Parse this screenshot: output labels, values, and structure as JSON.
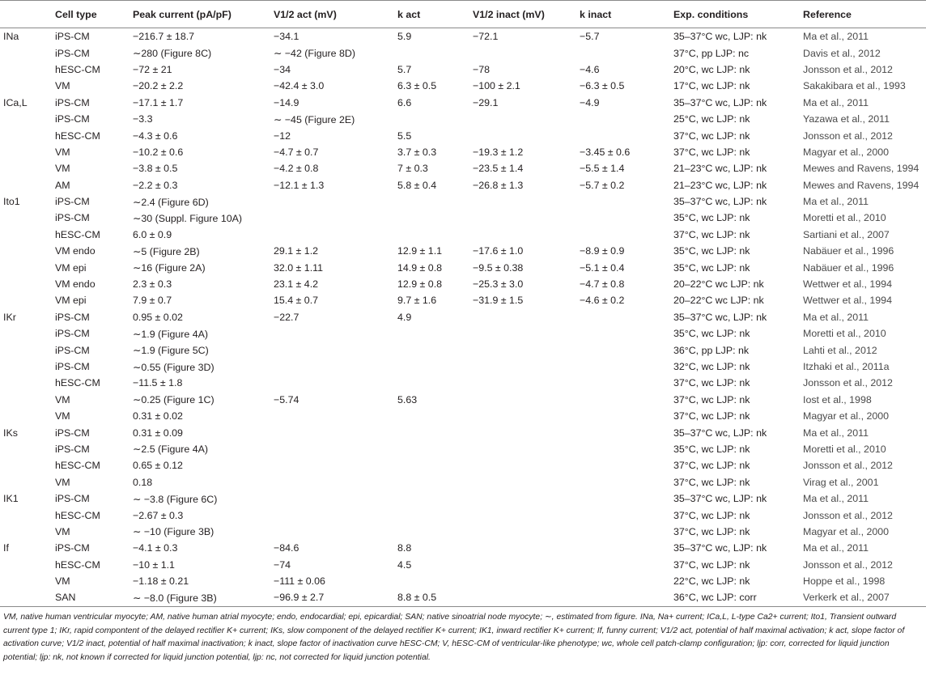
{
  "headers": [
    "",
    "Cell type",
    "Peak current (pA/pF)",
    "V1/2 act (mV)",
    "k act",
    "V1/2 inact (mV)",
    "k inact",
    "Exp. conditions",
    "Reference"
  ],
  "rows": [
    [
      "INa",
      "iPS-CM",
      "−216.7 ± 18.7",
      "−34.1",
      "5.9",
      "−72.1",
      "−5.7",
      "35–37°C wc, LJP: nk",
      "Ma et al., 2011"
    ],
    [
      "",
      "iPS-CM",
      "∼280 (Figure 8C)",
      "∼ −42 (Figure 8D)",
      "",
      "",
      "",
      "37°C, pp LJP: nc",
      "Davis et al., 2012"
    ],
    [
      "",
      "hESC-CM",
      "−72 ± 21",
      "−34",
      "5.7",
      "−78",
      "−4.6",
      "20°C, wc LJP: nk",
      "Jonsson et al., 2012"
    ],
    [
      "",
      "VM",
      "−20.2 ± 2.2",
      "−42.4 ± 3.0",
      "6.3 ± 0.5",
      "−100 ± 2.1",
      "−6.3 ± 0.5",
      "17°C, wc LJP: nk",
      "Sakakibara et al., 1993"
    ],
    [
      "ICa,L",
      "iPS-CM",
      "−17.1 ± 1.7",
      "−14.9",
      "6.6",
      "−29.1",
      "−4.9",
      "35–37°C wc, LJP: nk",
      "Ma et al., 2011"
    ],
    [
      "",
      "iPS-CM",
      "−3.3",
      "∼ −45 (Figure 2E)",
      "",
      "",
      "",
      "25°C, wc LJP: nk",
      "Yazawa et al., 2011"
    ],
    [
      "",
      "hESC-CM",
      "−4.3 ± 0.6",
      "−12",
      "5.5",
      "",
      "",
      "37°C, wc LJP: nk",
      "Jonsson et al., 2012"
    ],
    [
      "",
      "VM",
      "−10.2 ± 0.6",
      "−4.7 ± 0.7",
      "3.7 ± 0.3",
      "−19.3 ± 1.2",
      "−3.45 ± 0.6",
      "37°C, wc LJP: nk",
      "Magyar et al., 2000"
    ],
    [
      "",
      "VM",
      "−3.8 ± 0.5",
      "−4.2 ± 0.8",
      "7 ± 0.3",
      "−23.5 ± 1.4",
      "−5.5 ± 1.4",
      "21–23°C wc, LJP: nk",
      "Mewes and Ravens, 1994"
    ],
    [
      "",
      "AM",
      "−2.2 ± 0.3",
      "−12.1 ± 1.3",
      "5.8 ± 0.4",
      "−26.8 ± 1.3",
      "−5.7 ± 0.2",
      "21–23°C wc, LJP: nk",
      "Mewes and Ravens, 1994"
    ],
    [
      "Ito1",
      "iPS-CM",
      "∼2.4 (Figure 6D)",
      "",
      "",
      "",
      "",
      "35–37°C wc, LJP: nk",
      "Ma et al., 2011"
    ],
    [
      "",
      "iPS-CM",
      "∼30 (Suppl. Figure 10A)",
      "",
      "",
      "",
      "",
      "35°C, wc LJP: nk",
      "Moretti et al., 2010"
    ],
    [
      "",
      "hESC-CM",
      "6.0 ± 0.9",
      "",
      "",
      "",
      "",
      "37°C, wc LJP: nk",
      "Sartiani et al., 2007"
    ],
    [
      "",
      "VM endo",
      "∼5 (Figure 2B)",
      "29.1 ± 1.2",
      "12.9 ± 1.1",
      "−17.6 ± 1.0",
      "−8.9 ± 0.9",
      "35°C, wc LJP: nk",
      "Nabäuer et al., 1996"
    ],
    [
      "",
      "VM epi",
      "∼16 (Figure 2A)",
      "32.0 ± 1.11",
      "14.9 ± 0.8",
      "−9.5 ± 0.38",
      "−5.1 ± 0.4",
      "35°C, wc LJP: nk",
      "Nabäuer et al., 1996"
    ],
    [
      "",
      "VM endo",
      "2.3 ± 0.3",
      "23.1 ± 4.2",
      "12.9 ± 0.8",
      "−25.3 ± 3.0",
      "−4.7 ± 0.8",
      "20–22°C wc LJP: nk",
      "Wettwer et al., 1994"
    ],
    [
      "",
      "VM epi",
      "7.9 ± 0.7",
      "15.4 ± 0.7",
      "9.7 ± 1.6",
      "−31.9 ± 1.5",
      "−4.6 ± 0.2",
      "20–22°C wc LJP: nk",
      "Wettwer et al., 1994"
    ],
    [
      "IKr",
      "iPS-CM",
      "0.95 ± 0.02",
      "−22.7",
      "4.9",
      "",
      "",
      "35–37°C wc, LJP: nk",
      "Ma et al., 2011"
    ],
    [
      "",
      "iPS-CM",
      "∼1.9 (Figure 4A)",
      "",
      "",
      "",
      "",
      "35°C, wc LJP: nk",
      "Moretti et al., 2010"
    ],
    [
      "",
      "iPS-CM",
      "∼1.9 (Figure 5C)",
      "",
      "",
      "",
      "",
      "36°C, pp LJP: nk",
      "Lahti et al., 2012"
    ],
    [
      "",
      "iPS-CM",
      "∼0.55 (Figure 3D)",
      "",
      "",
      "",
      "",
      "32°C, wc LJP: nk",
      "Itzhaki et al., 2011a"
    ],
    [
      "",
      "hESC-CM",
      "−11.5 ± 1.8",
      "",
      "",
      "",
      "",
      "37°C, wc LJP: nk",
      "Jonsson et al., 2012"
    ],
    [
      "",
      "VM",
      "∼0.25 (Figure 1C)",
      "−5.74",
      "5.63",
      "",
      "",
      "37°C, wc LJP: nk",
      "Iost et al., 1998"
    ],
    [
      "",
      "VM",
      "0.31 ± 0.02",
      "",
      "",
      "",
      "",
      "37°C, wc LJP: nk",
      "Magyar et al., 2000"
    ],
    [
      "IKs",
      "iPS-CM",
      "0.31 ± 0.09",
      "",
      "",
      "",
      "",
      "35–37°C wc, LJP: nk",
      "Ma et al., 2011"
    ],
    [
      "",
      "iPS-CM",
      "∼2.5 (Figure 4A)",
      "",
      "",
      "",
      "",
      "35°C, wc LJP: nk",
      "Moretti et al., 2010"
    ],
    [
      "",
      "hESC-CM",
      "0.65 ± 0.12",
      "",
      "",
      "",
      "",
      "37°C, wc LJP: nk",
      "Jonsson et al., 2012"
    ],
    [
      "",
      "VM",
      "0.18",
      "",
      "",
      "",
      "",
      "37°C, wc LJP: nk",
      "Virag et al., 2001"
    ],
    [
      "IK1",
      "iPS-CM",
      "∼ −3.8 (Figure 6C)",
      "",
      "",
      "",
      "",
      "35–37°C wc, LJP: nk",
      "Ma et al., 2011"
    ],
    [
      "",
      "hESC-CM",
      "−2.67 ± 0.3",
      "",
      "",
      "",
      "",
      "37°C, wc LJP: nk",
      "Jonsson et al., 2012"
    ],
    [
      "",
      "VM",
      "∼ −10 (Figure 3B)",
      "",
      "",
      "",
      "",
      "37°C, wc LJP: nk",
      "Magyar et al., 2000"
    ],
    [
      "If",
      "iPS-CM",
      "−4.1 ± 0.3",
      "−84.6",
      "8.8",
      "",
      "",
      "35–37°C wc, LJP: nk",
      "Ma et al., 2011"
    ],
    [
      "",
      "hESC-CM",
      "−10 ± 1.1",
      "−74",
      "4.5",
      "",
      "",
      "37°C, wc LJP: nk",
      "Jonsson et al., 2012"
    ],
    [
      "",
      "VM",
      "−1.18 ± 0.21",
      "−111 ± 0.06",
      "",
      "",
      "",
      "22°C, wc LJP: nk",
      "Hoppe et al., 1998"
    ],
    [
      "",
      "SAN",
      "∼ −8.0 (Figure 3B)",
      "−96.9 ± 2.7",
      "8.8 ± 0.5",
      "",
      "",
      "36°C, wc LJP: corr",
      "Verkerk et al., 2007"
    ]
  ],
  "footnote": "VM, native human ventricular myocyte; AM, native human atrial myocyte; endo, endocardial; epi, epicardial; SAN; native sinoatrial node myocyte; ∼, estimated from figure. INa, Na+ current; ICa,L, L-type Ca2+ current; Ito1, Transient outward current type 1; IKr, rapid compontent of the delayed rectifier K+ current; IKs, slow component of the delayed rectifier K+ current; IK1, inward rectifier K+ current; If, funny current; V1/2 act, potential of half maximal activation; k act, slope factor of activation curve; V1/2 inact, potential of half maximal inactivation; k inact, slope factor of inactivation curve hESC-CM; V, hESC-CM of ventricular-like phenotype; wc, whole cell patch-clamp configuration; ljp: corr, corrected for liquid junction potential; ljp: nk, not known if corrected for liquid junction potential, ljp: nc, not corrected for liquid junction potential."
}
